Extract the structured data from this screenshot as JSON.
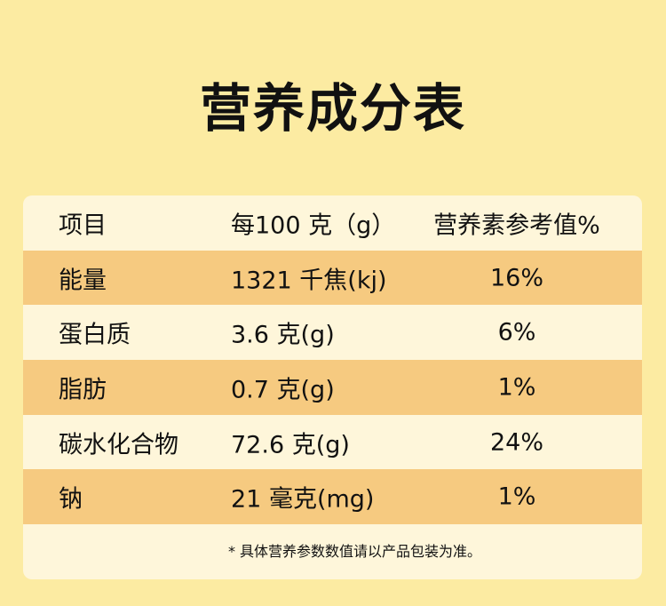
{
  "title": "营养成分表",
  "colors": {
    "background": "#FCEBA2",
    "card": "#FEF6DA",
    "highlight_row": "#F6CA80"
  },
  "table": {
    "headers": [
      "项目",
      "每100 克（g）",
      "营养素参考值%"
    ],
    "rows": [
      [
        "能量",
        "1321 千焦(kj)",
        "16%"
      ],
      [
        "蛋白质",
        "3.6 克(g)",
        "6%"
      ],
      [
        "脂肪",
        "0.7 克(g)",
        "1%"
      ],
      [
        "碳水化合物",
        "72.6 克(g)",
        "24%"
      ],
      [
        "钠",
        "21 毫克(mg)",
        "1%"
      ]
    ]
  },
  "footnote": "* 具体营养参数数值请以产品包装为准。"
}
